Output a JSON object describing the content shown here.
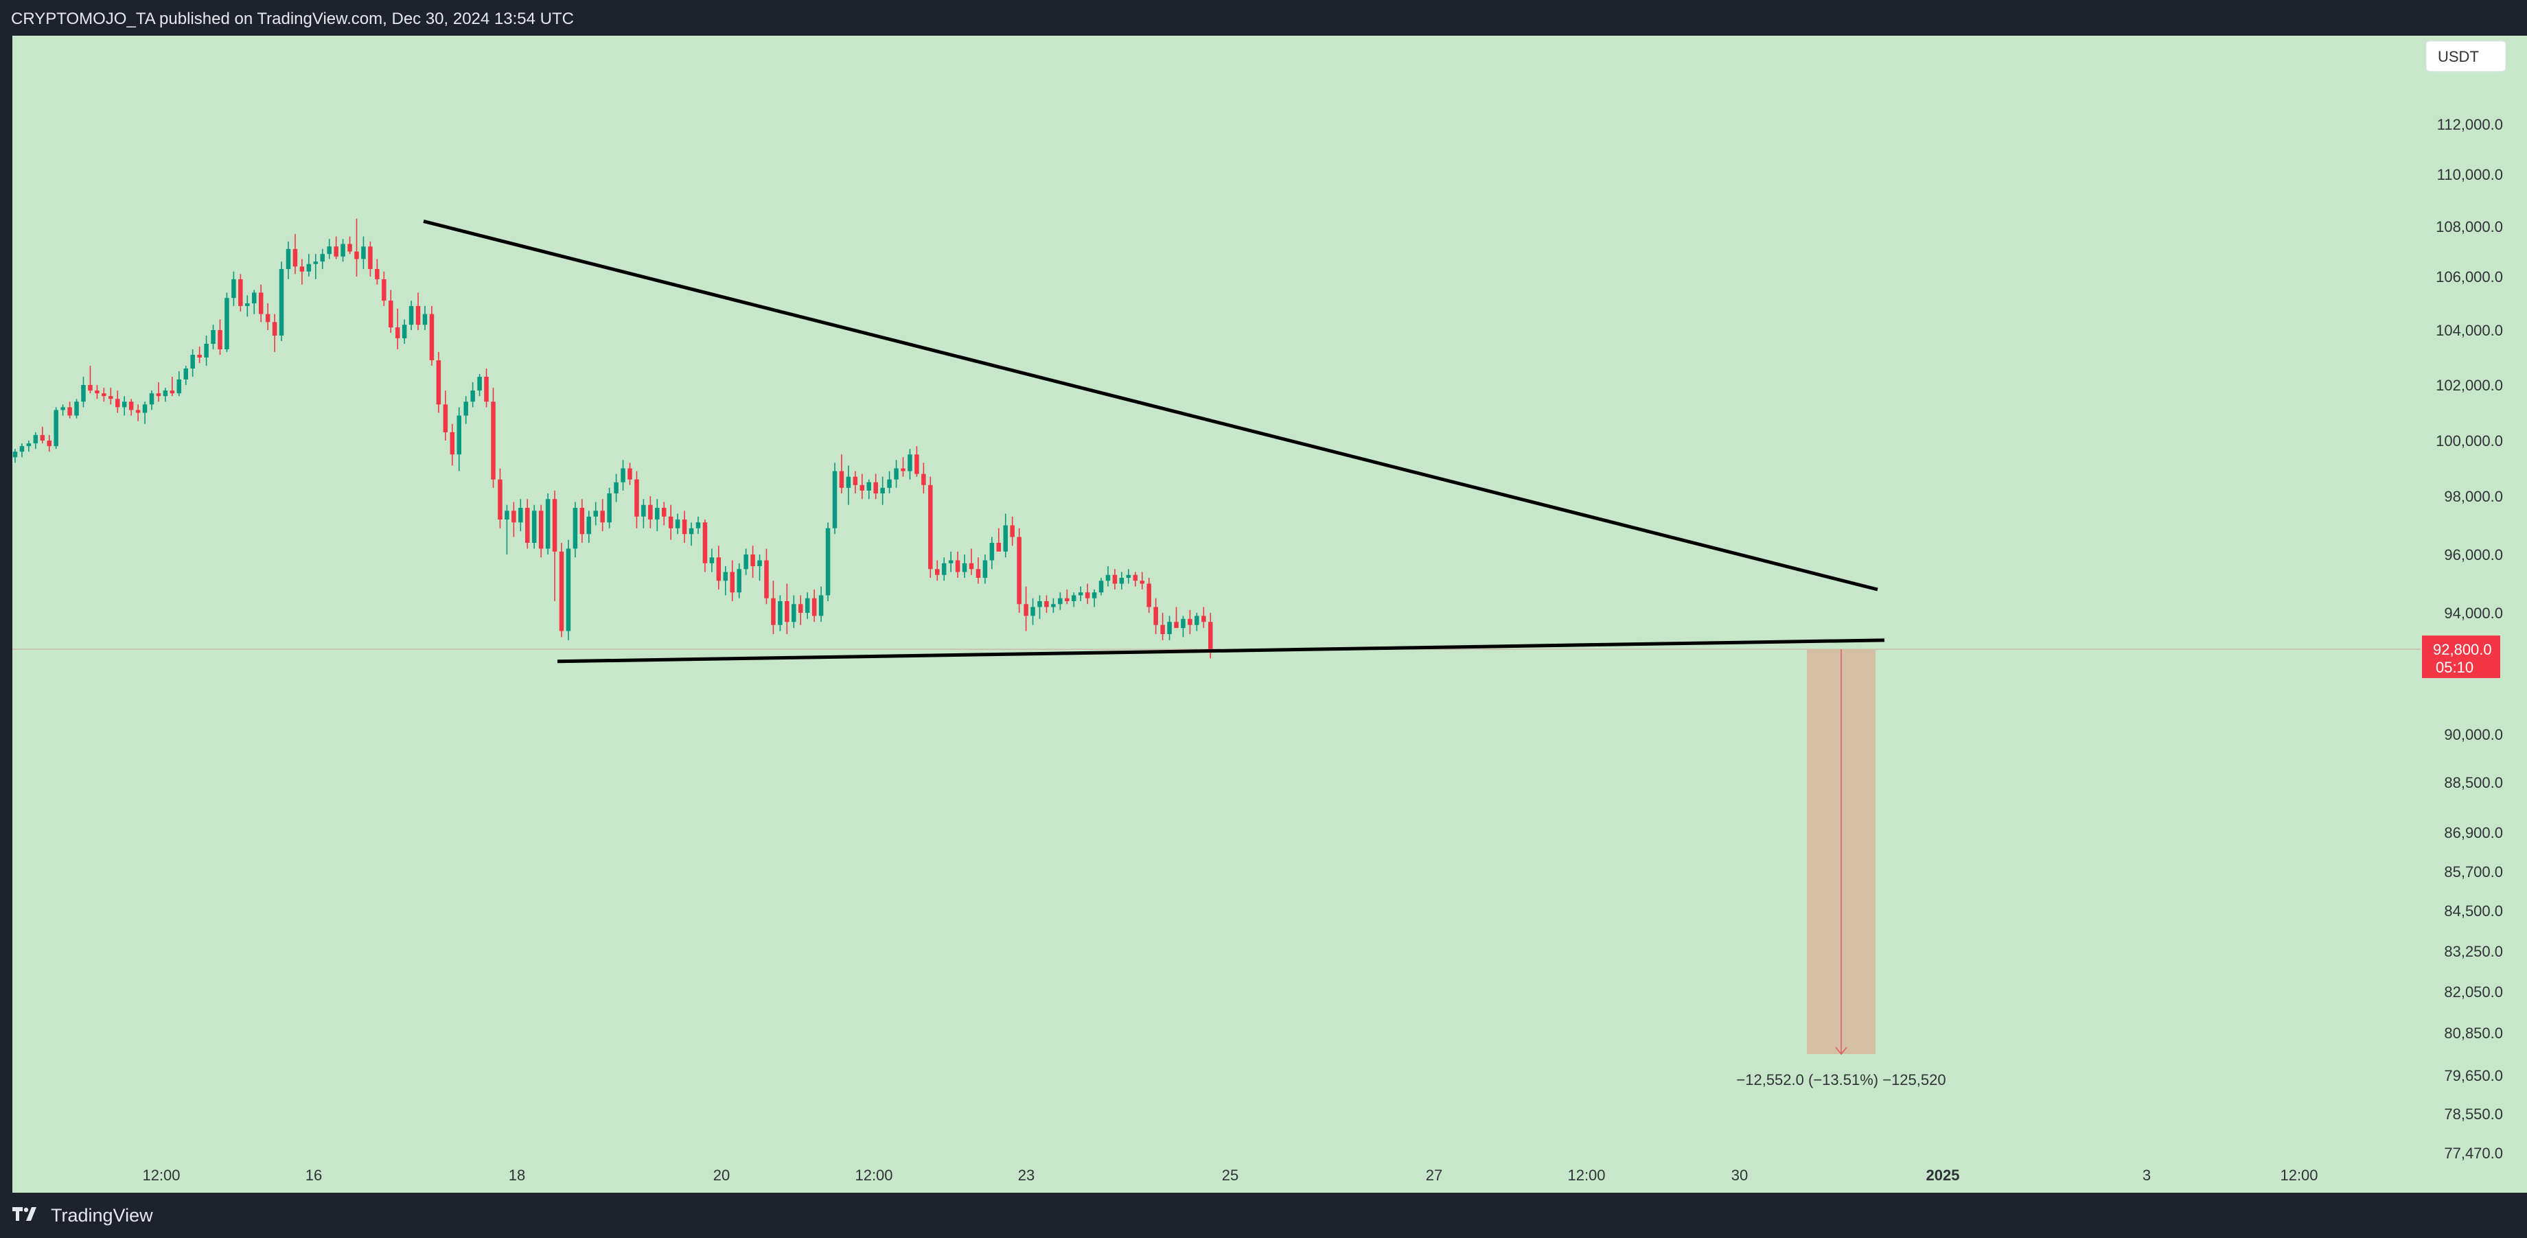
{
  "header": {
    "published_by": "CRYPTOMOJO_TA published on TradingView.com, Dec 30, 2024 13:54 UTC"
  },
  "footer": {
    "brand": "TradingView"
  },
  "colors": {
    "background": "#c8e6c9",
    "up": "#089981",
    "down": "#f23645",
    "line": "#000000",
    "zone": "#d4bfa6"
  },
  "chart_data": {
    "type": "candlestick",
    "symbol_currency": "USDT",
    "price_scale_labels": [
      "112,000.0",
      "110,000.0",
      "108,000.0",
      "106,000.0",
      "104,000.0",
      "102,000.0",
      "100,000.0",
      "98,000.0",
      "96,000.0",
      "94,000.0",
      "90,000.0",
      "88,500.0",
      "86,900.0",
      "85,700.0",
      "84,500.0",
      "83,250.0",
      "82,050.0",
      "80,850.0",
      "79,650.0",
      "78,550.0",
      "77,470.0"
    ],
    "time_labels": [
      "12:00",
      "16",
      "18",
      "20",
      "12:00",
      "23",
      "25",
      "27",
      "12:00",
      "30",
      "2025",
      "3",
      "12:00"
    ],
    "last_price": {
      "price": "92,800.0",
      "countdown": "05:10",
      "value": 92800
    },
    "descending_resistance": {
      "from": {
        "date": "Dec 17",
        "price": 108200
      },
      "to": {
        "date": "Dec 31",
        "price": 94800
      }
    },
    "support": {
      "from": {
        "date": "Dec 18",
        "price": 92400
      },
      "to": {
        "date": "Dec 31",
        "price": 93100
      }
    },
    "projection": {
      "from_price": 92800,
      "to_price": 80250,
      "label": "−12,552.0 (−13.51%) −125,520"
    },
    "candles": [
      [
        99400,
        99700,
        99200,
        99600
      ],
      [
        99600,
        99900,
        99400,
        99800
      ],
      [
        99800,
        100000,
        99600,
        99900
      ],
      [
        99900,
        100300,
        99700,
        100200
      ],
      [
        100200,
        100500,
        99900,
        100000
      ],
      [
        100000,
        100200,
        99600,
        99800
      ],
      [
        99800,
        101200,
        99700,
        101100
      ],
      [
        101100,
        101300,
        100900,
        101200
      ],
      [
        101200,
        101400,
        100800,
        100900
      ],
      [
        100900,
        101500,
        100800,
        101400
      ],
      [
        101400,
        102300,
        101200,
        102000
      ],
      [
        102000,
        102700,
        101700,
        101800
      ],
      [
        101800,
        102000,
        101500,
        101700
      ],
      [
        101700,
        101900,
        101400,
        101600
      ],
      [
        101600,
        101900,
        101300,
        101500
      ],
      [
        101500,
        101800,
        101000,
        101200
      ],
      [
        101200,
        101600,
        100900,
        101400
      ],
      [
        101400,
        101500,
        100900,
        101100
      ],
      [
        101100,
        101300,
        100700,
        101000
      ],
      [
        101000,
        101400,
        100600,
        101300
      ],
      [
        101300,
        101800,
        101100,
        101700
      ],
      [
        101700,
        102100,
        101400,
        101600
      ],
      [
        101600,
        101900,
        101400,
        101800
      ],
      [
        101800,
        102300,
        101600,
        101700
      ],
      [
        101700,
        102500,
        101600,
        102200
      ],
      [
        102200,
        102700,
        102000,
        102600
      ],
      [
        102600,
        103300,
        102300,
        103100
      ],
      [
        103100,
        103400,
        102800,
        103000
      ],
      [
        103000,
        103800,
        102700,
        103500
      ],
      [
        103500,
        104200,
        103300,
        104000
      ],
      [
        104000,
        104400,
        103100,
        103300
      ],
      [
        103300,
        105400,
        103200,
        105200
      ],
      [
        105200,
        106200,
        104900,
        105900
      ],
      [
        105900,
        106100,
        104700,
        104900
      ],
      [
        104900,
        105300,
        104500,
        105000
      ],
      [
        105000,
        105500,
        104600,
        105400
      ],
      [
        105400,
        105700,
        104300,
        104600
      ],
      [
        104600,
        105000,
        104000,
        104300
      ],
      [
        104300,
        104600,
        103200,
        103800
      ],
      [
        103800,
        106600,
        103600,
        106300
      ],
      [
        106300,
        107400,
        105900,
        107100
      ],
      [
        107100,
        107700,
        106100,
        106400
      ],
      [
        106400,
        106700,
        105700,
        106200
      ],
      [
        106200,
        106900,
        106000,
        106500
      ],
      [
        106500,
        106900,
        105900,
        106600
      ],
      [
        106600,
        107100,
        106300,
        106900
      ],
      [
        106900,
        107500,
        106700,
        107200
      ],
      [
        107200,
        107600,
        106700,
        106800
      ],
      [
        106800,
        107500,
        106600,
        107300
      ],
      [
        107300,
        107600,
        106900,
        107000
      ],
      [
        107000,
        108300,
        106000,
        106700
      ],
      [
        106700,
        107600,
        106300,
        107200
      ],
      [
        107200,
        107400,
        106000,
        106300
      ],
      [
        106300,
        106700,
        105700,
        105900
      ],
      [
        105900,
        106200,
        104900,
        105100
      ],
      [
        105100,
        105500,
        103900,
        104100
      ],
      [
        104100,
        104800,
        103300,
        103700
      ],
      [
        103700,
        104400,
        103500,
        104200
      ],
      [
        104200,
        105100,
        104000,
        104900
      ],
      [
        104900,
        105400,
        104000,
        104200
      ],
      [
        104200,
        104900,
        104000,
        104600
      ],
      [
        104600,
        104900,
        102700,
        102900
      ],
      [
        102900,
        103200,
        101000,
        101300
      ],
      [
        101300,
        101800,
        100000,
        100300
      ],
      [
        100300,
        100600,
        99100,
        99500
      ],
      [
        99500,
        101200,
        98900,
        100900
      ],
      [
        100900,
        101600,
        100600,
        101400
      ],
      [
        101400,
        102100,
        101200,
        101800
      ],
      [
        101800,
        102400,
        101600,
        102300
      ],
      [
        102300,
        102600,
        101200,
        101400
      ],
      [
        101400,
        101900,
        98300,
        98600
      ],
      [
        98600,
        99000,
        96900,
        97200
      ],
      [
        97200,
        97700,
        96000,
        97500
      ],
      [
        97500,
        97800,
        96600,
        97100
      ],
      [
        97100,
        97900,
        96800,
        97600
      ],
      [
        97600,
        97900,
        96200,
        96400
      ],
      [
        96400,
        97700,
        96200,
        97500
      ],
      [
        97500,
        97700,
        95900,
        96200
      ],
      [
        96200,
        98100,
        96000,
        97900
      ],
      [
        97900,
        98200,
        94400,
        96100
      ],
      [
        96100,
        96400,
        93200,
        93400
      ],
      [
        93400,
        96500,
        93100,
        96200
      ],
      [
        96200,
        97800,
        95900,
        97600
      ],
      [
        97600,
        97900,
        96400,
        96700
      ],
      [
        96700,
        97500,
        96400,
        97300
      ],
      [
        97300,
        97800,
        97000,
        97500
      ],
      [
        97500,
        97900,
        96800,
        97100
      ],
      [
        97100,
        98300,
        96900,
        98100
      ],
      [
        98100,
        98800,
        97800,
        98500
      ],
      [
        98500,
        99300,
        98200,
        99000
      ],
      [
        99000,
        99200,
        98400,
        98600
      ],
      [
        98600,
        98900,
        96900,
        97300
      ],
      [
        97300,
        97900,
        96900,
        97700
      ],
      [
        97700,
        98000,
        96900,
        97200
      ],
      [
        97200,
        97900,
        96800,
        97600
      ],
      [
        97600,
        97800,
        97000,
        97300
      ],
      [
        97300,
        97700,
        96500,
        96900
      ],
      [
        96900,
        97400,
        96700,
        97200
      ],
      [
        97200,
        97500,
        96400,
        96700
      ],
      [
        96700,
        97100,
        96300,
        96900
      ],
      [
        96900,
        97300,
        96700,
        97100
      ],
      [
        97100,
        97200,
        95400,
        95700
      ],
      [
        95700,
        96200,
        95400,
        95900
      ],
      [
        95900,
        96300,
        94800,
        95100
      ],
      [
        95100,
        95600,
        94600,
        95400
      ],
      [
        95400,
        95800,
        94400,
        94700
      ],
      [
        94700,
        95700,
        94500,
        95500
      ],
      [
        95500,
        96200,
        95300,
        96000
      ],
      [
        96000,
        96300,
        95200,
        95600
      ],
      [
        95600,
        96000,
        95100,
        95800
      ],
      [
        95800,
        96200,
        94300,
        94500
      ],
      [
        94500,
        95100,
        93300,
        93600
      ],
      [
        93600,
        94600,
        93400,
        94400
      ],
      [
        94400,
        95000,
        93300,
        93700
      ],
      [
        93700,
        94600,
        93500,
        94300
      ],
      [
        94300,
        94600,
        93600,
        94000
      ],
      [
        94000,
        94700,
        93800,
        94500
      ],
      [
        94500,
        94800,
        93700,
        93900
      ],
      [
        93900,
        94900,
        93700,
        94600
      ],
      [
        94600,
        97100,
        94400,
        96900
      ],
      [
        96900,
        99200,
        96700,
        98900
      ],
      [
        98900,
        99500,
        98100,
        98300
      ],
      [
        98300,
        99100,
        97700,
        98700
      ],
      [
        98700,
        98900,
        98100,
        98400
      ],
      [
        98400,
        98800,
        97900,
        98200
      ],
      [
        98200,
        98600,
        97900,
        98500
      ],
      [
        98500,
        98800,
        97900,
        98100
      ],
      [
        98100,
        98700,
        97700,
        98300
      ],
      [
        98300,
        98900,
        98100,
        98600
      ],
      [
        98600,
        99300,
        98300,
        99000
      ],
      [
        99000,
        99400,
        98700,
        98900
      ],
      [
        98900,
        99700,
        98600,
        99500
      ],
      [
        99500,
        99800,
        98700,
        98800
      ],
      [
        98800,
        99200,
        98100,
        98400
      ],
      [
        98400,
        98700,
        95200,
        95500
      ],
      [
        95500,
        95800,
        95100,
        95300
      ],
      [
        95300,
        95900,
        95100,
        95700
      ],
      [
        95700,
        96100,
        95400,
        95800
      ],
      [
        95800,
        96100,
        95200,
        95400
      ],
      [
        95400,
        96000,
        95200,
        95700
      ],
      [
        95700,
        96200,
        95300,
        95500
      ],
      [
        95500,
        95900,
        95000,
        95200
      ],
      [
        95200,
        96000,
        95000,
        95800
      ],
      [
        95800,
        96600,
        95500,
        96400
      ],
      [
        96400,
        96900,
        96200,
        96100
      ],
      [
        96100,
        97400,
        95900,
        97000
      ],
      [
        97000,
        97300,
        96300,
        96600
      ],
      [
        96600,
        96900,
        94000,
        94300
      ],
      [
        94300,
        94900,
        93400,
        93900
      ],
      [
        93900,
        94500,
        93600,
        94200
      ],
      [
        94200,
        94600,
        93800,
        94400
      ],
      [
        94400,
        94600,
        94000,
        94200
      ],
      [
        94200,
        94500,
        94000,
        94300
      ],
      [
        94300,
        94700,
        94100,
        94500
      ],
      [
        94500,
        94800,
        94300,
        94400
      ],
      [
        94400,
        94700,
        94200,
        94600
      ],
      [
        94600,
        94900,
        94400,
        94700
      ],
      [
        94700,
        95000,
        94300,
        94500
      ],
      [
        94500,
        94800,
        94200,
        94700
      ],
      [
        94700,
        95200,
        94600,
        95100
      ],
      [
        95100,
        95600,
        94900,
        95300
      ],
      [
        95300,
        95500,
        94800,
        95000
      ],
      [
        95000,
        95400,
        94800,
        95200
      ],
      [
        95200,
        95500,
        95000,
        95300
      ],
      [
        95300,
        95400,
        94900,
        95100
      ],
      [
        95100,
        95400,
        94800,
        95000
      ],
      [
        95000,
        95200,
        94000,
        94200
      ],
      [
        94200,
        94500,
        93300,
        93600
      ],
      [
        93600,
        94000,
        93100,
        93300
      ],
      [
        93300,
        93900,
        93100,
        93700
      ],
      [
        93700,
        94200,
        93500,
        93500
      ],
      [
        93500,
        93900,
        93200,
        93800
      ],
      [
        93800,
        94100,
        93300,
        93600
      ],
      [
        93600,
        94000,
        93400,
        93900
      ],
      [
        93900,
        94200,
        93500,
        93700
      ],
      [
        93700,
        94000,
        92500,
        92800
      ]
    ]
  }
}
